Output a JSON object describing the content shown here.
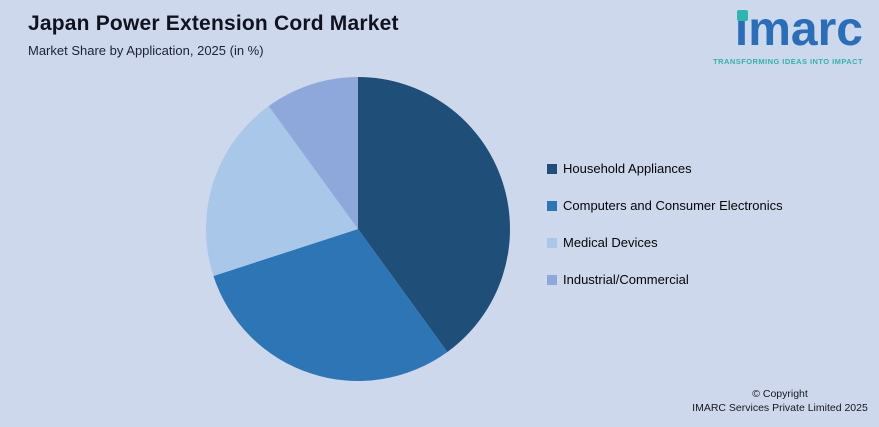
{
  "page": {
    "background": "#cdd8ec"
  },
  "header": {
    "title": "Japan Power Extension Cord Market",
    "subtitle": "Market Share by Application, 2025 (in %)"
  },
  "logo": {
    "text": "imarc",
    "tagline": "TRANSFORMING IDEAS INTO IMPACT",
    "brand_blue": "#2a6db8",
    "brand_teal": "#2fb5af"
  },
  "chart_data": {
    "type": "pie",
    "title": "Japan Power Extension Cord Market",
    "subtitle": "Market Share by Application, 2025 (in %)",
    "labels": [
      "Household Appliances",
      "Computers and Consumer Electronics",
      "Medical Devices",
      "Industrial/Commercial"
    ],
    "values": [
      40,
      30,
      20,
      10
    ],
    "units": "%",
    "colors": [
      "#1f4e79",
      "#2e75b6",
      "#a9c7e9",
      "#8fa8dc"
    ],
    "start_angle_deg": 0,
    "direction": "clockwise",
    "legend_position": "right",
    "value_labels_shown": false
  },
  "footer": {
    "copyright_line1": "© Copyright",
    "copyright_line2": "IMARC Services Private Limited 2025"
  }
}
